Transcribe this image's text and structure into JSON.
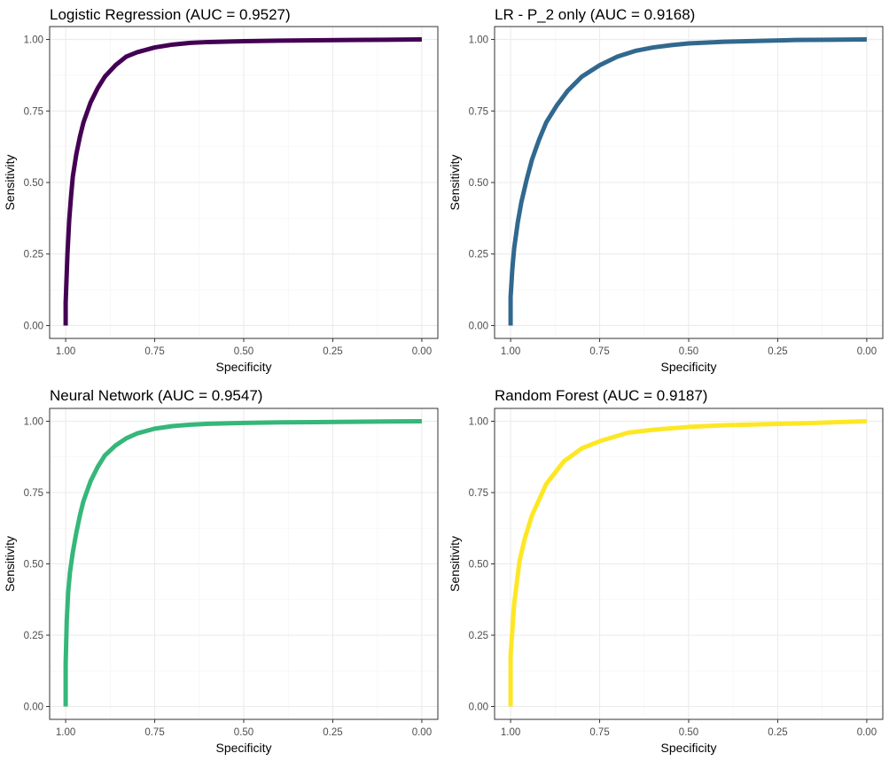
{
  "chart_data": [
    {
      "type": "line",
      "title": "Logistic Regression (AUC = 0.9527)",
      "xlabel": "Specificity",
      "ylabel": "Sensitivity",
      "xlim": [
        1.0,
        0.0
      ],
      "ylim": [
        0.0,
        1.0
      ],
      "x_reversed": true,
      "x_ticks": [
        "1.00",
        "0.75",
        "0.50",
        "0.25",
        "0.00"
      ],
      "y_ticks": [
        "0.00",
        "0.25",
        "0.50",
        "0.75",
        "1.00"
      ],
      "grid": true,
      "color": "#440154",
      "series": [
        {
          "x": [
            1.0,
            1.0,
            0.995,
            0.99,
            0.985,
            0.98,
            0.97,
            0.96,
            0.95,
            0.93,
            0.91,
            0.89,
            0.86,
            0.83,
            0.8,
            0.75,
            0.7,
            0.65,
            0.6,
            0.5,
            0.4,
            0.3,
            0.2,
            0.1,
            0.0
          ],
          "y": [
            0.0,
            0.08,
            0.25,
            0.37,
            0.45,
            0.52,
            0.6,
            0.66,
            0.71,
            0.78,
            0.83,
            0.87,
            0.91,
            0.94,
            0.955,
            0.972,
            0.982,
            0.988,
            0.991,
            0.994,
            0.996,
            0.997,
            0.998,
            0.999,
            1.0
          ]
        }
      ]
    },
    {
      "type": "line",
      "title": "LR - P_2 only (AUC = 0.9168)",
      "xlabel": "Specificity",
      "ylabel": "Sensitivity",
      "xlim": [
        1.0,
        0.0
      ],
      "ylim": [
        0.0,
        1.0
      ],
      "x_reversed": true,
      "x_ticks": [
        "1.00",
        "0.75",
        "0.50",
        "0.25",
        "0.00"
      ],
      "y_ticks": [
        "0.00",
        "0.25",
        "0.50",
        "0.75",
        "1.00"
      ],
      "grid": true,
      "color": "#31688e",
      "series": [
        {
          "x": [
            1.0,
            1.0,
            0.995,
            0.99,
            0.98,
            0.97,
            0.955,
            0.94,
            0.92,
            0.9,
            0.87,
            0.84,
            0.8,
            0.75,
            0.7,
            0.65,
            0.6,
            0.55,
            0.5,
            0.4,
            0.3,
            0.2,
            0.1,
            0.0
          ],
          "y": [
            0.0,
            0.1,
            0.2,
            0.27,
            0.36,
            0.43,
            0.51,
            0.58,
            0.65,
            0.71,
            0.77,
            0.82,
            0.87,
            0.91,
            0.94,
            0.96,
            0.972,
            0.98,
            0.986,
            0.992,
            0.995,
            0.998,
            0.999,
            1.0
          ]
        }
      ]
    },
    {
      "type": "line",
      "title": "Neural Network (AUC = 0.9547)",
      "xlabel": "Specificity",
      "ylabel": "Sensitivity",
      "xlim": [
        1.0,
        0.0
      ],
      "ylim": [
        0.0,
        1.0
      ],
      "x_reversed": true,
      "x_ticks": [
        "1.00",
        "0.75",
        "0.50",
        "0.25",
        "0.00"
      ],
      "y_ticks": [
        "0.00",
        "0.25",
        "0.50",
        "0.75",
        "1.00"
      ],
      "grid": true,
      "color": "#35b779",
      "series": [
        {
          "x": [
            1.0,
            1.0,
            0.997,
            0.993,
            0.988,
            0.98,
            0.97,
            0.96,
            0.95,
            0.93,
            0.91,
            0.89,
            0.86,
            0.83,
            0.8,
            0.75,
            0.7,
            0.65,
            0.6,
            0.5,
            0.4,
            0.3,
            0.2,
            0.1,
            0.0
          ],
          "y": [
            0.0,
            0.15,
            0.3,
            0.4,
            0.47,
            0.54,
            0.61,
            0.67,
            0.72,
            0.79,
            0.84,
            0.88,
            0.915,
            0.94,
            0.957,
            0.974,
            0.983,
            0.988,
            0.991,
            0.994,
            0.996,
            0.997,
            0.998,
            0.999,
            1.0
          ]
        }
      ]
    },
    {
      "type": "line",
      "title": "Random Forest (AUC = 0.9187)",
      "xlabel": "Specificity",
      "ylabel": "Sensitivity",
      "xlim": [
        1.0,
        0.0
      ],
      "ylim": [
        0.0,
        1.0
      ],
      "x_reversed": true,
      "x_ticks": [
        "1.00",
        "0.75",
        "0.50",
        "0.25",
        "0.00"
      ],
      "y_ticks": [
        "0.00",
        "0.25",
        "0.50",
        "0.75",
        "1.00"
      ],
      "grid": true,
      "color": "#fde725",
      "series": [
        {
          "x": [
            1.0,
            1.0,
            0.99,
            0.975,
            0.96,
            0.94,
            0.9,
            0.85,
            0.8,
            0.75,
            0.67,
            0.6,
            0.5,
            0.4,
            0.3,
            0.2,
            0.1,
            0.0
          ],
          "y": [
            0.0,
            0.18,
            0.36,
            0.51,
            0.59,
            0.67,
            0.78,
            0.86,
            0.905,
            0.93,
            0.96,
            0.97,
            0.98,
            0.986,
            0.989,
            0.992,
            0.996,
            1.0
          ]
        }
      ]
    }
  ]
}
